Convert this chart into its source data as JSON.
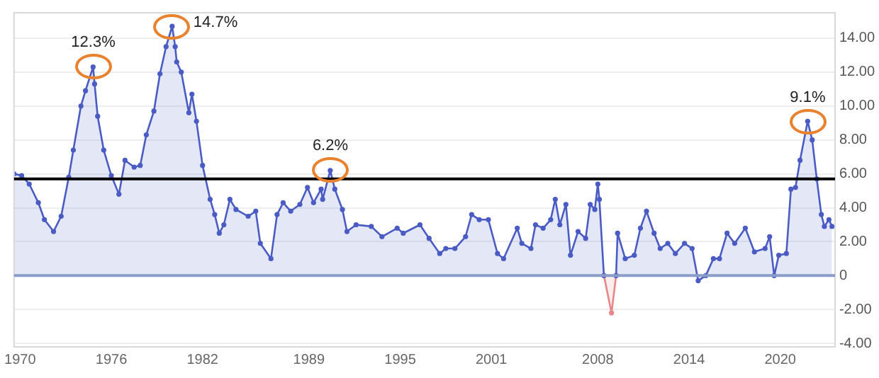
{
  "chart_data": {
    "type": "area",
    "x": [
      1969.6,
      1970.1,
      1970.6,
      1971.2,
      1971.6,
      1972.2,
      1972.7,
      1973.2,
      1973.5,
      1974.0,
      1974.3,
      1974.8,
      1974.9,
      1975.1,
      1975.5,
      1976.0,
      1976.5,
      1976.9,
      1977.5,
      1977.9,
      1978.3,
      1978.8,
      1979.2,
      1979.6,
      1980.0,
      1980.2,
      1980.3,
      1980.6,
      1981.1,
      1981.3,
      1981.6,
      1982.0,
      1982.5,
      1982.8,
      1983.1,
      1983.4,
      1983.8,
      1984.2,
      1985.0,
      1985.5,
      1985.8,
      1986.5,
      1986.9,
      1987.3,
      1987.8,
      1988.4,
      1988.9,
      1989.3,
      1989.8,
      1989.9,
      1990.4,
      1990.7,
      1991.2,
      1991.5,
      1992.1,
      1993.1,
      1993.8,
      1994.8,
      1995.2,
      1996.3,
      1996.9,
      1997.6,
      1998.0,
      1998.6,
      1999.3,
      1999.7,
      2000.2,
      2000.8,
      2001.4,
      2001.8,
      2002.7,
      2003.0,
      2003.6,
      2003.9,
      2004.4,
      2004.9,
      2005.2,
      2005.5,
      2005.9,
      2006.2,
      2006.7,
      2007.2,
      2007.5,
      2007.8,
      2008.0,
      2008.1,
      2008.4,
      2009.2,
      2009.3,
      2009.8,
      2010.4,
      2010.8,
      2011.2,
      2011.7,
      2012.1,
      2012.6,
      2013.1,
      2013.7,
      2014.2,
      2014.6,
      2015.1,
      2015.6,
      2016.0,
      2016.5,
      2017.0,
      2017.7,
      2018.3,
      2019.0,
      2019.3,
      2019.6,
      2019.9,
      2020.4,
      2020.7,
      2021.0,
      2021.3,
      2021.8,
      2022.1,
      2022.4,
      2022.7,
      2022.9,
      2023.2,
      2023.4
    ],
    "series": [
      {
        "color": "#4a5cc4",
        "values": [
          6.0,
          5.9,
          5.4,
          4.3,
          3.3,
          2.6,
          3.5,
          5.8,
          7.4,
          10.0,
          10.9,
          12.3,
          11.3,
          9.4,
          7.4,
          5.9,
          4.8,
          6.8,
          6.4,
          6.5,
          8.3,
          9.7,
          11.9,
          13.5,
          14.7,
          13.5,
          12.6,
          12.0,
          9.6,
          10.7,
          9.1,
          6.5,
          4.5,
          3.6,
          2.5,
          3.0,
          4.5,
          3.9,
          3.5,
          3.8,
          1.9,
          1.0,
          3.6,
          4.3,
          3.8,
          4.2,
          5.2,
          4.3,
          5.1,
          4.5,
          6.2,
          5.1,
          3.9,
          2.6,
          3.0,
          2.9,
          2.3,
          2.8,
          2.5,
          3.0,
          2.2,
          1.3,
          1.6,
          1.6,
          2.3,
          3.6,
          3.3,
          3.3,
          1.3,
          1.0,
          2.8,
          1.9,
          1.6,
          3.0,
          2.8,
          3.3,
          4.5,
          3.0,
          4.2,
          1.2,
          2.6,
          2.2,
          4.2,
          3.9,
          5.4,
          4.5,
          0.0,
          0.0,
          2.5,
          1.0,
          1.2,
          2.8,
          3.8,
          2.5,
          1.6,
          1.9,
          1.3,
          1.9,
          1.6,
          -0.3,
          0.0,
          1.0,
          1.0,
          2.5,
          1.9,
          2.8,
          1.4,
          1.6,
          2.3,
          0.0,
          1.2,
          1.3,
          5.1,
          5.2,
          6.8,
          9.1,
          8.0,
          5.7,
          3.6,
          2.9,
          3.3,
          2.9
        ]
      },
      {
        "color": "#e8868a",
        "x": [
          2008.4,
          2008.9,
          2009.2
        ],
        "values": [
          0.0,
          -2.2,
          0.0
        ]
      }
    ],
    "xlim": [
      1969.6,
      2023.6
    ],
    "xticks": [
      1970,
      1976,
      1982,
      1989,
      1995,
      2001,
      2008,
      2014,
      2020
    ],
    "ylim": [
      -4.2,
      15.5
    ],
    "yticks": [
      {
        "value": -4,
        "label": "-4.00"
      },
      {
        "value": -2,
        "label": "-2.00"
      },
      {
        "value": 0,
        "label": "0"
      },
      {
        "value": 2,
        "label": "2.00"
      },
      {
        "value": 4,
        "label": "4.00"
      },
      {
        "value": 6,
        "label": "6.00"
      },
      {
        "value": 8,
        "label": "8.00"
      },
      {
        "value": 10,
        "label": "10.00"
      },
      {
        "value": 12,
        "label": "12.00"
      },
      {
        "value": 14,
        "label": "14.00"
      }
    ],
    "ref_lines": [
      {
        "axis": "y",
        "value": 0,
        "color": "#8a9cc8"
      },
      {
        "axis": "y",
        "value": 5.7,
        "color": "#000000"
      }
    ],
    "annotations": [
      {
        "text": "12.3%",
        "x": 1974.8,
        "y": 12.3
      },
      {
        "text": "14.7%",
        "x": 1980.0,
        "y": 14.7
      },
      {
        "text": "6.2%",
        "x": 1990.4,
        "y": 6.2
      },
      {
        "text": "9.1%",
        "x": 2021.8,
        "y": 9.1
      }
    ],
    "grid": "y",
    "marker": "circle",
    "legend": false
  }
}
